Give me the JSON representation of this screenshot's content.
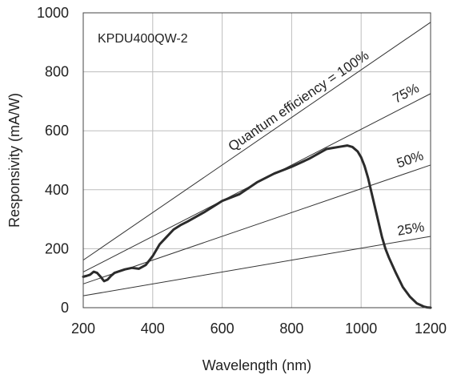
{
  "chart_data": {
    "type": "line",
    "annotation": "KPDU400QW-2",
    "xlabel": "Wavelength  (nm)",
    "ylabel": "Responsivity  (mA/W)",
    "xlim": [
      200,
      1200
    ],
    "ylim": [
      0,
      1000
    ],
    "xticks": [
      200,
      400,
      600,
      800,
      1000,
      1200
    ],
    "yticks": [
      0,
      200,
      400,
      600,
      800,
      1000
    ],
    "grid": true,
    "reference_lines": [
      {
        "label": "Quantum efficiency = 100%",
        "efficiency": 1.0
      },
      {
        "label": "75%",
        "efficiency": 0.75
      },
      {
        "label": "50%",
        "efficiency": 0.5
      },
      {
        "label": "25%",
        "efficiency": 0.25
      }
    ],
    "series": [
      {
        "x": [
          200,
          210,
          220,
          230,
          240,
          250,
          260,
          270,
          280,
          290,
          300,
          320,
          340,
          360,
          380,
          400,
          420,
          440,
          460,
          480,
          500,
          550,
          600,
          650,
          700,
          750,
          800,
          850,
          900,
          920,
          940,
          960,
          975,
          990,
          1000,
          1010,
          1020,
          1030,
          1040,
          1050,
          1060,
          1070,
          1080,
          1100,
          1120,
          1140,
          1160,
          1180,
          1190,
          1200
        ],
        "y": [
          105,
          108,
          112,
          122,
          118,
          105,
          90,
          95,
          108,
          118,
          122,
          130,
          135,
          132,
          145,
          175,
          215,
          240,
          265,
          280,
          292,
          325,
          362,
          385,
          425,
          455,
          478,
          505,
          538,
          542,
          546,
          550,
          545,
          530,
          510,
          480,
          440,
          390,
          340,
          290,
          240,
          200,
          170,
          118,
          70,
          38,
          15,
          4,
          1,
          0
        ]
      }
    ]
  }
}
